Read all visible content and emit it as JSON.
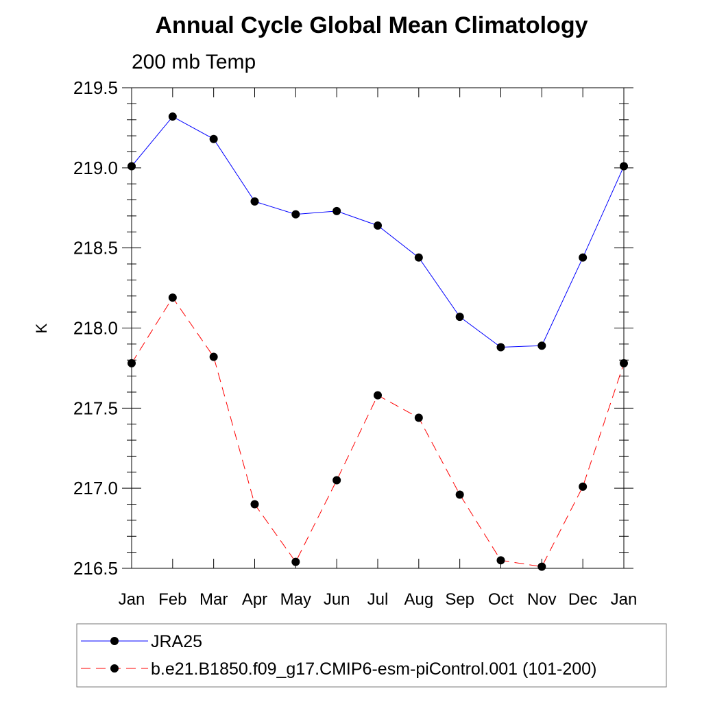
{
  "chart_data": {
    "type": "line",
    "title": "Annual Cycle Global Mean Climatology",
    "subtitle": "200 mb Temp",
    "xlabel": "",
    "ylabel": "K",
    "categories": [
      "Jan",
      "Feb",
      "Mar",
      "Apr",
      "May",
      "Jun",
      "Jul",
      "Aug",
      "Sep",
      "Oct",
      "Nov",
      "Dec",
      "Jan"
    ],
    "ylim": [
      216.5,
      219.5
    ],
    "yticks": [
      "216.5",
      "217.0",
      "217.5",
      "218.0",
      "218.5",
      "219.0",
      "219.5"
    ],
    "legend_position": "bottom",
    "series": [
      {
        "name": "JRA25",
        "color": "#0000ff",
        "dash": "solid",
        "values": [
          219.01,
          219.32,
          219.18,
          218.79,
          218.71,
          218.73,
          218.64,
          218.44,
          218.07,
          217.88,
          217.89,
          218.44,
          219.01
        ]
      },
      {
        "name": "b.e21.B1850.f09_g17.CMIP6-esm-piControl.001 (101-200)",
        "color": "#ff0000",
        "dash": "dashed",
        "values": [
          217.78,
          218.19,
          217.82,
          216.9,
          216.54,
          217.05,
          217.58,
          217.44,
          216.96,
          216.55,
          216.51,
          217.01,
          217.78
        ]
      }
    ]
  }
}
